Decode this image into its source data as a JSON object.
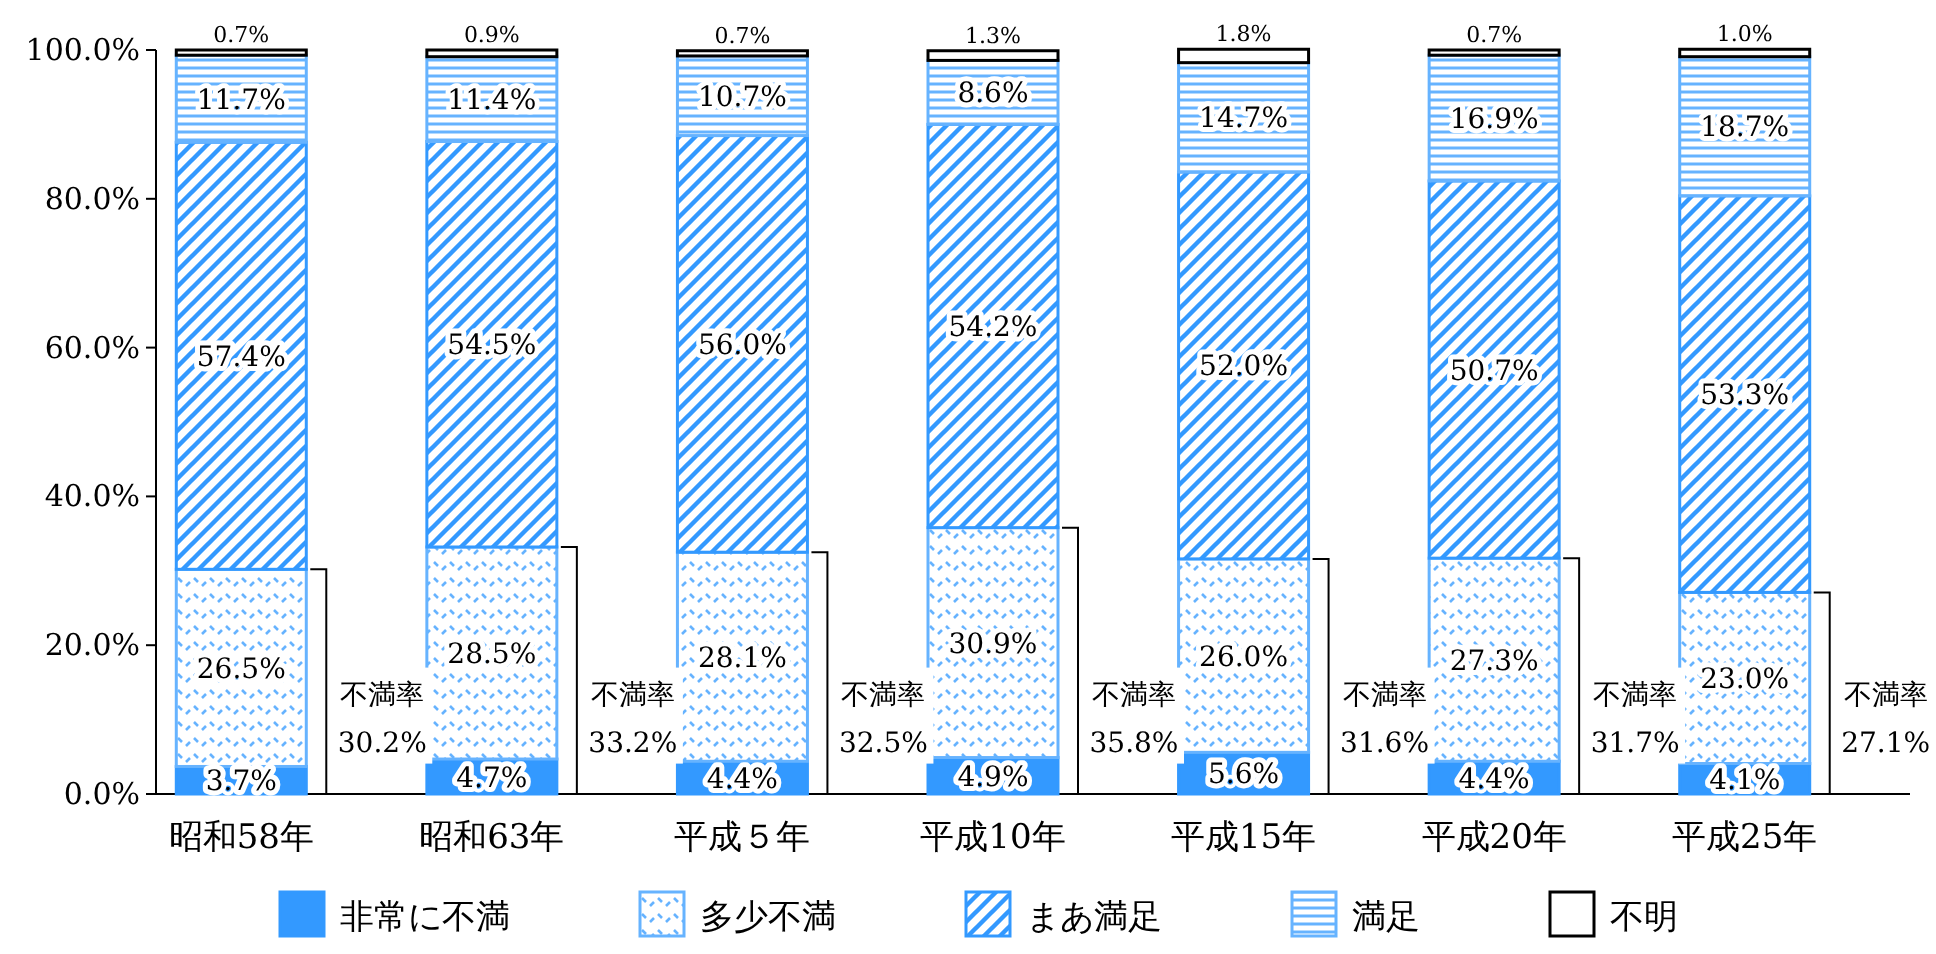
{
  "chart_data": {
    "type": "bar",
    "stacked": true,
    "legend": "bottom",
    "grid": false,
    "categories": [
      "昭和58年",
      "昭和63年",
      "平成５年",
      "平成10年",
      "平成15年",
      "平成20年",
      "平成25年"
    ],
    "ylim": [
      0,
      100
    ],
    "yticks": [
      {
        "value": 0,
        "label": "0.0%"
      },
      {
        "value": 20,
        "label": "20.0%"
      },
      {
        "value": 40,
        "label": "40.0%"
      },
      {
        "value": 60,
        "label": "60.0%"
      },
      {
        "value": 80,
        "label": "80.0%"
      },
      {
        "value": 100,
        "label": "100.0%"
      }
    ],
    "series": [
      {
        "name": "非常に不満",
        "color": "#3399ff",
        "values": [
          3.7,
          4.7,
          4.4,
          4.9,
          5.6,
          4.4,
          4.1
        ],
        "value_labels": [
          "3.7%",
          "4.7%",
          "4.4%",
          "4.9%",
          "5.6%",
          "4.4%",
          "4.1%"
        ]
      },
      {
        "name": "多少不満",
        "color": "#66b3ff",
        "values": [
          26.5,
          28.5,
          28.1,
          30.9,
          26.0,
          27.3,
          23.0
        ],
        "value_labels": [
          "26.5%",
          "28.5%",
          "28.1%",
          "30.9%",
          "26.0%",
          "27.3%",
          "23.0%"
        ]
      },
      {
        "name": "まあ満足",
        "color": "#3399ff",
        "values": [
          57.4,
          54.5,
          56.0,
          54.2,
          52.0,
          50.7,
          53.3
        ],
        "value_labels": [
          "57.4%",
          "54.5%",
          "56.0%",
          "54.2%",
          "52.0%",
          "50.7%",
          "53.3%"
        ]
      },
      {
        "name": "満足",
        "color": "#66b3ff",
        "values": [
          11.7,
          11.4,
          10.7,
          8.6,
          14.7,
          16.9,
          18.7
        ],
        "value_labels": [
          "11.7%",
          "11.4%",
          "10.7%",
          "8.6%",
          "14.7%",
          "16.9%",
          "18.7%"
        ]
      },
      {
        "name": "不明",
        "color": "#ffffff",
        "values": [
          0.7,
          0.9,
          0.7,
          1.3,
          1.8,
          0.7,
          1.0
        ],
        "value_labels": [
          "0.7%",
          "0.9%",
          "0.7%",
          "1.3%",
          "1.8%",
          "0.7%",
          "1.0%"
        ]
      }
    ],
    "annotations": [
      "不満率\n30.2%",
      "不満率\n33.2%",
      "不満率\n32.5%",
      "不満率\n35.8%",
      "不満率\n31.6%",
      "不満率\n31.7%",
      "不満率\n27.1%"
    ]
  }
}
